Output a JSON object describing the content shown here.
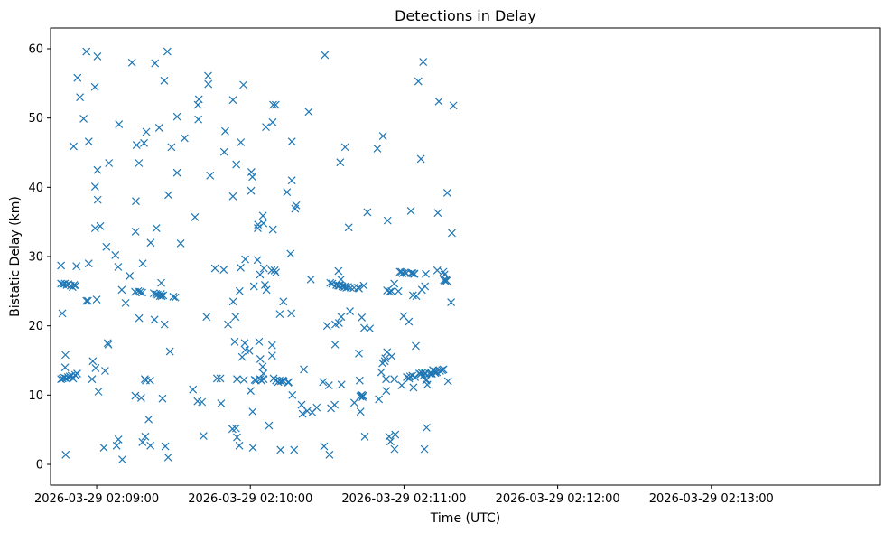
{
  "chart_data": {
    "type": "scatter",
    "title": "Detections in Delay",
    "xlabel": "Time (UTC)",
    "ylabel": "Bistatic Delay (km)",
    "marker": "x",
    "color": "#1f77b4",
    "grid": false,
    "legend": "none",
    "x_unit": "seconds past 2026-03-29 02:08:00 UTC",
    "xlim": [
      42,
      366
    ],
    "ylim": [
      -3,
      63
    ],
    "xticks": [
      {
        "value": 60,
        "label": "2026-03-29 02:09:00"
      },
      {
        "value": 120,
        "label": "2026-03-29 02:10:00"
      },
      {
        "value": 180,
        "label": "2026-03-29 02:11:00"
      },
      {
        "value": 240,
        "label": "2026-03-29 02:12:00"
      },
      {
        "value": 300,
        "label": "2026-03-29 02:13:00"
      }
    ],
    "yticks": [
      {
        "value": 0,
        "label": "0"
      },
      {
        "value": 10,
        "label": "10"
      },
      {
        "value": 20,
        "label": "20"
      },
      {
        "value": 30,
        "label": "30"
      },
      {
        "value": 40,
        "label": "40"
      },
      {
        "value": 50,
        "label": "50"
      },
      {
        "value": 60,
        "label": "60"
      }
    ],
    "points": [
      [
        46.1,
        12.3
      ],
      [
        46.7,
        12.4
      ],
      [
        47.4,
        12.5
      ],
      [
        48.1,
        12.4
      ],
      [
        48.8,
        12.6
      ],
      [
        49.5,
        12.7
      ],
      [
        50.2,
        12.8
      ],
      [
        50.8,
        12.4
      ],
      [
        51.6,
        12.9
      ],
      [
        52.4,
        13.1
      ],
      [
        46.1,
        26.1
      ],
      [
        46.9,
        26.0
      ],
      [
        47.6,
        26.1
      ],
      [
        48.3,
        25.9
      ],
      [
        49.0,
        26.0
      ],
      [
        49.9,
        25.8
      ],
      [
        50.6,
        25.6
      ],
      [
        51.2,
        25.9
      ],
      [
        51.8,
        25.8
      ],
      [
        46.1,
        28.7
      ],
      [
        46.6,
        21.8
      ],
      [
        47.7,
        14.0
      ],
      [
        47.8,
        15.8
      ],
      [
        47.9,
        1.4
      ],
      [
        51.0,
        45.9
      ],
      [
        52.1,
        28.6
      ],
      [
        52.5,
        55.8
      ],
      [
        53.5,
        53.0
      ],
      [
        54.9,
        49.9
      ],
      [
        56.0,
        59.6
      ],
      [
        56.0,
        23.6
      ],
      [
        56.6,
        23.6
      ],
      [
        56.9,
        46.6
      ],
      [
        56.9,
        29.0
      ],
      [
        58.2,
        12.3
      ],
      [
        58.5,
        14.9
      ],
      [
        59.3,
        54.5
      ],
      [
        59.4,
        40.1
      ],
      [
        59.4,
        34.1
      ],
      [
        59.6,
        13.9
      ],
      [
        60.0,
        23.8
      ],
      [
        60.3,
        42.5
      ],
      [
        60.3,
        58.9
      ],
      [
        60.4,
        38.2
      ],
      [
        60.7,
        10.5
      ],
      [
        61.4,
        34.4
      ],
      [
        62.8,
        2.4
      ],
      [
        63.3,
        13.5
      ],
      [
        63.8,
        31.4
      ],
      [
        64.3,
        17.5
      ],
      [
        64.6,
        17.3
      ],
      [
        64.8,
        43.5
      ],
      [
        67.3,
        30.2
      ],
      [
        67.8,
        2.7
      ],
      [
        68.4,
        28.5
      ],
      [
        68.5,
        3.6
      ],
      [
        68.7,
        49.1
      ],
      [
        69.8,
        25.2
      ],
      [
        70.0,
        0.7
      ],
      [
        71.3,
        23.3
      ],
      [
        72.9,
        27.2
      ],
      [
        73.8,
        58.0
      ],
      [
        75.0,
        24.9
      ],
      [
        75.1,
        9.9
      ],
      [
        75.2,
        33.6
      ],
      [
        75.3,
        38.0
      ],
      [
        75.6,
        46.1
      ],
      [
        76.2,
        25.0
      ],
      [
        76.5,
        43.5
      ],
      [
        76.6,
        21.1
      ],
      [
        77.0,
        24.9
      ],
      [
        77.4,
        9.6
      ],
      [
        77.8,
        24.8
      ],
      [
        77.9,
        3.2
      ],
      [
        78.0,
        29.0
      ],
      [
        78.5,
        46.4
      ],
      [
        78.8,
        12.3
      ],
      [
        79.0,
        4.0
      ],
      [
        79.2,
        12.1
      ],
      [
        79.4,
        48.0
      ],
      [
        80.3,
        6.5
      ],
      [
        80.9,
        12.1
      ],
      [
        81.0,
        2.7
      ],
      [
        81.1,
        32.0
      ],
      [
        82.3,
        24.7
      ],
      [
        82.6,
        20.9
      ],
      [
        82.8,
        57.9
      ],
      [
        83.2,
        24.6
      ],
      [
        83.3,
        34.1
      ],
      [
        83.8,
        24.5
      ],
      [
        84.4,
        48.6
      ],
      [
        84.7,
        24.3
      ],
      [
        85.1,
        24.6
      ],
      [
        85.2,
        26.2
      ],
      [
        85.4,
        24.3
      ],
      [
        85.7,
        9.5
      ],
      [
        86.0,
        24.4
      ],
      [
        86.4,
        55.4
      ],
      [
        86.5,
        20.2
      ],
      [
        86.8,
        2.6
      ],
      [
        87.6,
        59.6
      ],
      [
        87.9,
        1.0
      ],
      [
        88.0,
        38.9
      ],
      [
        88.6,
        16.3
      ],
      [
        89.2,
        45.8
      ],
      [
        89.9,
        24.2
      ],
      [
        90.7,
        24.1
      ],
      [
        91.4,
        42.1
      ],
      [
        91.4,
        50.2
      ],
      [
        92.8,
        31.9
      ],
      [
        94.3,
        47.1
      ],
      [
        97.6,
        10.8
      ],
      [
        98.4,
        35.7
      ],
      [
        99.4,
        9.1
      ],
      [
        99.5,
        51.9
      ],
      [
        99.7,
        49.8
      ],
      [
        99.9,
        52.7
      ],
      [
        101.1,
        9.0
      ],
      [
        101.7,
        4.1
      ],
      [
        102.9,
        21.3
      ],
      [
        103.5,
        56.1
      ],
      [
        103.6,
        54.9
      ],
      [
        104.3,
        41.7
      ],
      [
        106.2,
        28.3
      ],
      [
        107.0,
        12.4
      ],
      [
        108.3,
        12.4
      ],
      [
        108.6,
        8.8
      ],
      [
        109.6,
        28.1
      ],
      [
        109.8,
        45.1
      ],
      [
        110.2,
        48.1
      ],
      [
        111.3,
        20.2
      ],
      [
        113.0,
        5.1
      ],
      [
        113.2,
        38.7
      ],
      [
        113.2,
        52.6
      ],
      [
        113.3,
        23.5
      ],
      [
        113.9,
        17.7
      ],
      [
        114.2,
        21.3
      ],
      [
        114.4,
        5.2
      ],
      [
        114.5,
        43.3
      ],
      [
        114.8,
        3.9
      ],
      [
        114.8,
        12.3
      ],
      [
        115.7,
        2.7
      ],
      [
        115.8,
        25.0
      ],
      [
        116.2,
        28.4
      ],
      [
        116.3,
        46.5
      ],
      [
        116.8,
        15.5
      ],
      [
        117.3,
        54.8
      ],
      [
        117.5,
        12.2
      ],
      [
        117.8,
        17.5
      ],
      [
        118.0,
        29.6
      ],
      [
        118.0,
        16.5
      ],
      [
        119.6,
        16.4
      ],
      [
        120.1,
        10.6
      ],
      [
        120.3,
        39.5
      ],
      [
        120.4,
        42.2
      ],
      [
        120.8,
        41.5
      ],
      [
        120.9,
        7.6
      ],
      [
        121.0,
        2.4
      ],
      [
        121.4,
        25.7
      ],
      [
        121.7,
        12.2
      ],
      [
        122.2,
        12.1
      ],
      [
        122.8,
        29.5
      ],
      [
        122.9,
        34.1
      ],
      [
        123.0,
        34.6
      ],
      [
        123.4,
        17.7
      ],
      [
        123.8,
        12.3
      ],
      [
        123.8,
        27.4
      ],
      [
        123.9,
        15.2
      ],
      [
        124.3,
        12.1
      ],
      [
        124.8,
        14.1
      ],
      [
        124.9,
        35.9
      ],
      [
        125.1,
        34.8
      ],
      [
        125.1,
        13.1
      ],
      [
        125.2,
        12.3
      ],
      [
        125.3,
        28.3
      ],
      [
        125.7,
        25.9
      ],
      [
        126.1,
        48.7
      ],
      [
        126.3,
        25.2
      ],
      [
        127.3,
        5.6
      ],
      [
        128.3,
        28.0
      ],
      [
        128.5,
        17.2
      ],
      [
        128.5,
        15.7
      ],
      [
        128.7,
        49.4
      ],
      [
        128.8,
        33.9
      ],
      [
        128.9,
        51.9
      ],
      [
        129.1,
        12.4
      ],
      [
        129.5,
        28.0
      ],
      [
        129.9,
        51.9
      ],
      [
        130.0,
        27.7
      ],
      [
        130.0,
        12.1
      ],
      [
        130.9,
        11.9
      ],
      [
        131.4,
        12.1
      ],
      [
        131.5,
        21.7
      ],
      [
        131.8,
        2.1
      ],
      [
        132.0,
        12.0
      ],
      [
        132.7,
        12.1
      ],
      [
        132.9,
        23.5
      ],
      [
        133.0,
        12.0
      ],
      [
        134.3,
        39.3
      ],
      [
        134.8,
        11.8
      ],
      [
        134.9,
        11.9
      ],
      [
        135.7,
        30.4
      ],
      [
        136.0,
        21.8
      ],
      [
        136.2,
        46.6
      ],
      [
        136.2,
        41.0
      ],
      [
        136.4,
        10.0
      ],
      [
        137.1,
        2.1
      ],
      [
        137.5,
        36.9
      ],
      [
        137.9,
        37.4
      ],
      [
        140.0,
        8.6
      ],
      [
        140.4,
        7.3
      ],
      [
        140.9,
        13.7
      ],
      [
        142.2,
        7.7
      ],
      [
        142.8,
        50.9
      ],
      [
        143.6,
        26.7
      ],
      [
        144.2,
        7.5
      ],
      [
        145.9,
        8.2
      ],
      [
        148.4,
        11.9
      ],
      [
        148.8,
        2.6
      ],
      [
        149.1,
        59.1
      ],
      [
        150.0,
        20.0
      ],
      [
        150.7,
        11.4
      ],
      [
        150.9,
        1.4
      ],
      [
        151.2,
        26.2
      ],
      [
        151.5,
        8.1
      ],
      [
        152.0,
        26.1
      ],
      [
        152.9,
        8.6
      ],
      [
        153.1,
        17.3
      ],
      [
        153.2,
        20.2
      ],
      [
        153.6,
        25.9
      ],
      [
        154.3,
        25.8
      ],
      [
        154.4,
        27.9
      ],
      [
        154.6,
        20.4
      ],
      [
        154.8,
        25.8
      ],
      [
        155.1,
        43.6
      ],
      [
        155.4,
        26.7
      ],
      [
        155.5,
        21.3
      ],
      [
        155.6,
        11.5
      ],
      [
        155.9,
        25.7
      ],
      [
        156.7,
        25.6
      ],
      [
        157.0,
        45.8
      ],
      [
        157.1,
        25.7
      ],
      [
        157.5,
        25.5
      ],
      [
        158.2,
        25.6
      ],
      [
        158.4,
        34.2
      ],
      [
        158.9,
        22.1
      ],
      [
        159.2,
        25.5
      ],
      [
        160.5,
        25.5
      ],
      [
        160.6,
        8.9
      ],
      [
        162.1,
        25.5
      ],
      [
        162.4,
        25.4
      ],
      [
        162.4,
        16.0
      ],
      [
        162.7,
        12.1
      ],
      [
        162.9,
        9.8
      ],
      [
        163.0,
        7.6
      ],
      [
        163.2,
        9.9
      ],
      [
        163.5,
        10.0
      ],
      [
        163.5,
        21.2
      ],
      [
        163.8,
        9.7
      ],
      [
        164.0,
        9.9
      ],
      [
        164.3,
        25.8
      ],
      [
        164.5,
        19.7
      ],
      [
        164.7,
        4.0
      ],
      [
        165.7,
        36.4
      ],
      [
        166.7,
        19.6
      ],
      [
        169.6,
        45.6
      ],
      [
        170.2,
        9.4
      ],
      [
        171.1,
        13.3
      ],
      [
        171.6,
        14.6
      ],
      [
        171.8,
        47.4
      ],
      [
        172.5,
        14.9
      ],
      [
        172.7,
        15.3
      ],
      [
        173.0,
        12.3
      ],
      [
        173.1,
        10.6
      ],
      [
        173.4,
        25.1
      ],
      [
        173.4,
        16.2
      ],
      [
        173.6,
        35.2
      ],
      [
        174.2,
        4.0
      ],
      [
        174.4,
        24.9
      ],
      [
        174.7,
        3.3
      ],
      [
        175.1,
        25.0
      ],
      [
        175.2,
        15.6
      ],
      [
        176.2,
        26.1
      ],
      [
        176.2,
        12.3
      ],
      [
        176.3,
        2.2
      ],
      [
        176.6,
        4.3
      ],
      [
        177.8,
        25.0
      ],
      [
        178.4,
        27.8
      ],
      [
        179.0,
        27.8
      ],
      [
        179.1,
        11.4
      ],
      [
        179.5,
        27.6
      ],
      [
        179.8,
        21.4
      ],
      [
        180.4,
        27.7
      ],
      [
        180.9,
        27.6
      ],
      [
        181.1,
        12.6
      ],
      [
        181.9,
        20.6
      ],
      [
        182.0,
        12.4
      ],
      [
        182.4,
        12.7
      ],
      [
        182.7,
        36.6
      ],
      [
        182.8,
        27.6
      ],
      [
        183.3,
        12.8
      ],
      [
        183.3,
        27.6
      ],
      [
        183.5,
        24.4
      ],
      [
        183.7,
        11.1
      ],
      [
        183.9,
        27.5
      ],
      [
        184.1,
        27.5
      ],
      [
        184.3,
        12.6
      ],
      [
        184.6,
        17.1
      ],
      [
        184.8,
        24.3
      ],
      [
        185.6,
        55.3
      ],
      [
        186.0,
        13.1
      ],
      [
        186.5,
        13.0
      ],
      [
        186.6,
        44.1
      ],
      [
        187.0,
        13.2
      ],
      [
        187.0,
        25.2
      ],
      [
        187.5,
        58.1
      ],
      [
        187.6,
        12.8
      ],
      [
        188.0,
        2.2
      ],
      [
        188.1,
        13.1
      ],
      [
        188.2,
        25.7
      ],
      [
        188.3,
        13.2
      ],
      [
        188.5,
        27.5
      ],
      [
        188.6,
        12.1
      ],
      [
        188.8,
        5.3
      ],
      [
        188.8,
        12.2
      ],
      [
        189.1,
        11.5
      ],
      [
        189.9,
        13.1
      ],
      [
        190.6,
        13.1
      ],
      [
        190.9,
        13.1
      ],
      [
        191.3,
        13.6
      ],
      [
        191.6,
        13.5
      ],
      [
        192.1,
        13.4
      ],
      [
        192.2,
        13.2
      ],
      [
        192.8,
        13.3
      ],
      [
        193.0,
        28.0
      ],
      [
        193.2,
        36.3
      ],
      [
        193.6,
        52.4
      ],
      [
        194.1,
        13.5
      ],
      [
        194.9,
        13.6
      ],
      [
        195.4,
        13.7
      ],
      [
        195.4,
        27.8
      ],
      [
        195.6,
        26.6
      ],
      [
        195.8,
        27.4
      ],
      [
        196.0,
        26.5
      ],
      [
        196.4,
        26.6
      ],
      [
        196.7,
        26.5
      ],
      [
        196.9,
        39.2
      ],
      [
        197.2,
        12.0
      ],
      [
        198.4,
        23.4
      ],
      [
        198.7,
        33.4
      ],
      [
        199.3,
        51.8
      ]
    ]
  }
}
